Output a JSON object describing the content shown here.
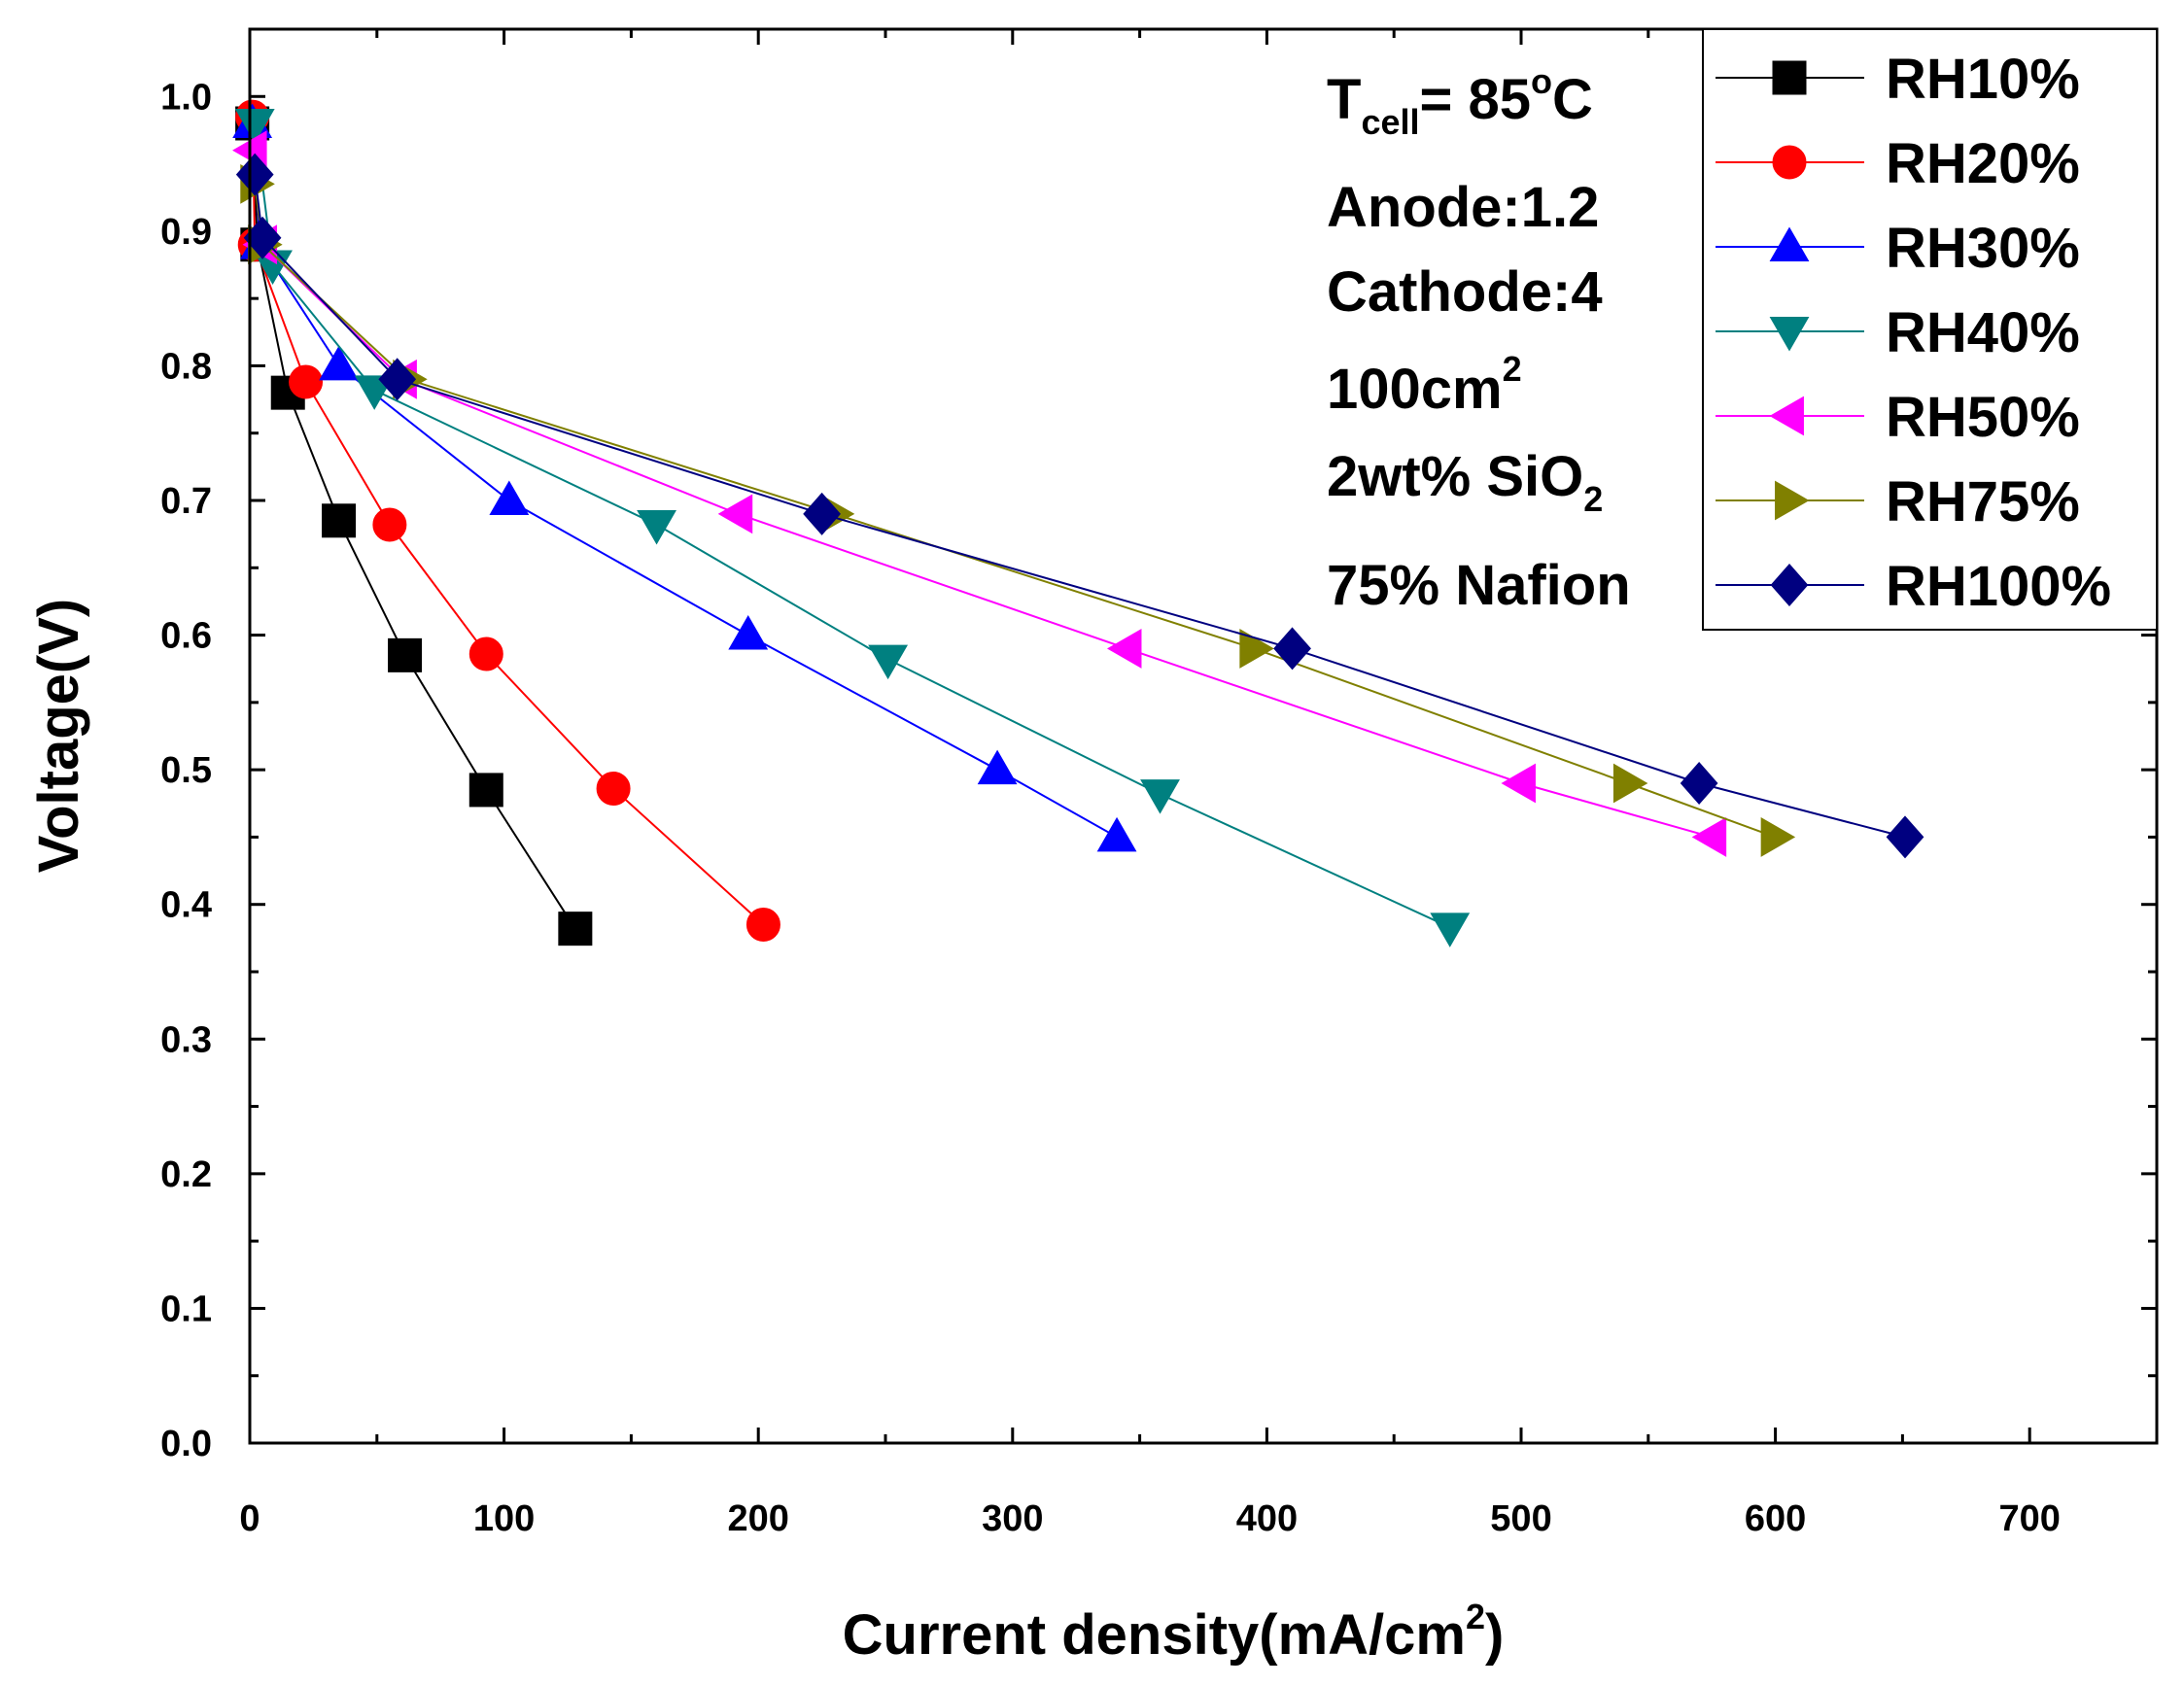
{
  "chart_data": {
    "type": "line",
    "title": "",
    "xlabel": "Current density(mA/cm",
    "xlabel_sup": "2",
    "xlabel_end": ")",
    "ylabel": "Voltage(V)",
    "xlim": [
      0,
      750
    ],
    "ylim": [
      0,
      1.05
    ],
    "xticks": [
      0,
      100,
      200,
      300,
      400,
      500,
      600,
      700
    ],
    "yticks": [
      0.0,
      0.1,
      0.2,
      0.3,
      0.4,
      0.5,
      0.6,
      0.7,
      0.8,
      0.9,
      1.0
    ],
    "xtick_labels": [
      "0",
      "100",
      "200",
      "300",
      "400",
      "500",
      "600",
      "700"
    ],
    "ytick_labels": [
      "0.0",
      "0.1",
      "0.2",
      "0.3",
      "0.4",
      "0.5",
      "0.6",
      "0.7",
      "0.8",
      "0.9",
      "1.0"
    ],
    "grid": false,
    "legend_position": "top-right",
    "series": [
      {
        "name": "RH10%",
        "color": "#000000",
        "marker": "square",
        "x": [
          1,
          3,
          15,
          35,
          61,
          93,
          128
        ],
        "y": [
          0.98,
          0.89,
          0.78,
          0.685,
          0.585,
          0.485,
          0.382
        ]
      },
      {
        "name": "RH20%",
        "color": "#ff0000",
        "marker": "circle",
        "x": [
          1,
          2,
          22,
          55,
          93,
          143,
          202
        ],
        "y": [
          0.985,
          0.89,
          0.788,
          0.682,
          0.586,
          0.486,
          0.385
        ]
      },
      {
        "name": "RH30%",
        "color": "#0000ff",
        "marker": "triangle-up",
        "x": [
          1,
          4,
          35,
          102,
          196,
          294,
          341
        ],
        "y": [
          0.98,
          0.89,
          0.8,
          0.7,
          0.6,
          0.5,
          0.45
        ]
      },
      {
        "name": "RH40%",
        "color": "#008080",
        "marker": "triangle-down",
        "x": [
          2,
          9,
          49,
          160,
          251,
          358,
          472
        ],
        "y": [
          0.98,
          0.875,
          0.782,
          0.682,
          0.582,
          0.482,
          0.383
        ]
      },
      {
        "name": "RH50%",
        "color": "#ff00ff",
        "marker": "triangle-left",
        "x": [
          1,
          5,
          60,
          192,
          345,
          500,
          575
        ],
        "y": [
          0.96,
          0.89,
          0.79,
          0.69,
          0.59,
          0.49,
          0.45
        ]
      },
      {
        "name": "RH75%",
        "color": "#808000",
        "marker": "triangle-right",
        "x": [
          2,
          5,
          62,
          230,
          395,
          542,
          600
        ],
        "y": [
          0.935,
          0.89,
          0.79,
          0.69,
          0.59,
          0.49,
          0.45
        ]
      },
      {
        "name": "RH100%",
        "color": "#000080",
        "marker": "diamond",
        "x": [
          2,
          5,
          58,
          225,
          410,
          570,
          651
        ],
        "y": [
          0.942,
          0.895,
          0.79,
          0.69,
          0.59,
          0.49,
          0.45
        ]
      }
    ]
  },
  "annotation": {
    "line1": {
      "main": "T",
      "sub": "cell",
      "rest": "= 85",
      "sup": "o",
      "end": "C"
    },
    "line2": "Anode:1.2",
    "line3": "Cathode:4",
    "line4": {
      "main": "100cm",
      "sup": "2"
    },
    "line5": {
      "main": "2wt% SiO",
      "sub": "2"
    },
    "line6": "75% Nafion"
  }
}
